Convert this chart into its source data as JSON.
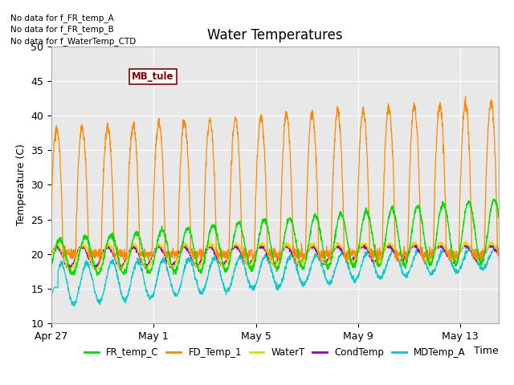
{
  "title": "Water Temperatures",
  "ylabel": "Temperature (C)",
  "xlabel": "Time",
  "ylim": [
    10,
    50
  ],
  "yticks": [
    10,
    15,
    20,
    25,
    30,
    35,
    40,
    45,
    50
  ],
  "xtick_labels": [
    "Apr 27",
    "May 1",
    "May 5",
    "May 9",
    "May 13"
  ],
  "xtick_positions": [
    0,
    4,
    8,
    12,
    16
  ],
  "bg_color": "#e8e8e8",
  "text_annotations": [
    "No data for f_FR_temp_A",
    "No data for f_FR_temp_B",
    "No data for f_WaterTemp_CTD"
  ],
  "mb_tule_label": "MB_tule",
  "legend_entries": [
    {
      "label": "FR_temp_C",
      "color": "#00dd00"
    },
    {
      "label": "FD_Temp_1",
      "color": "#ff8800"
    },
    {
      "label": "WaterT",
      "color": "#dddd00"
    },
    {
      "label": "CondTemp",
      "color": "#9900cc"
    },
    {
      "label": "MDTemp_A",
      "color": "#00cccc"
    }
  ],
  "num_days": 17.5
}
